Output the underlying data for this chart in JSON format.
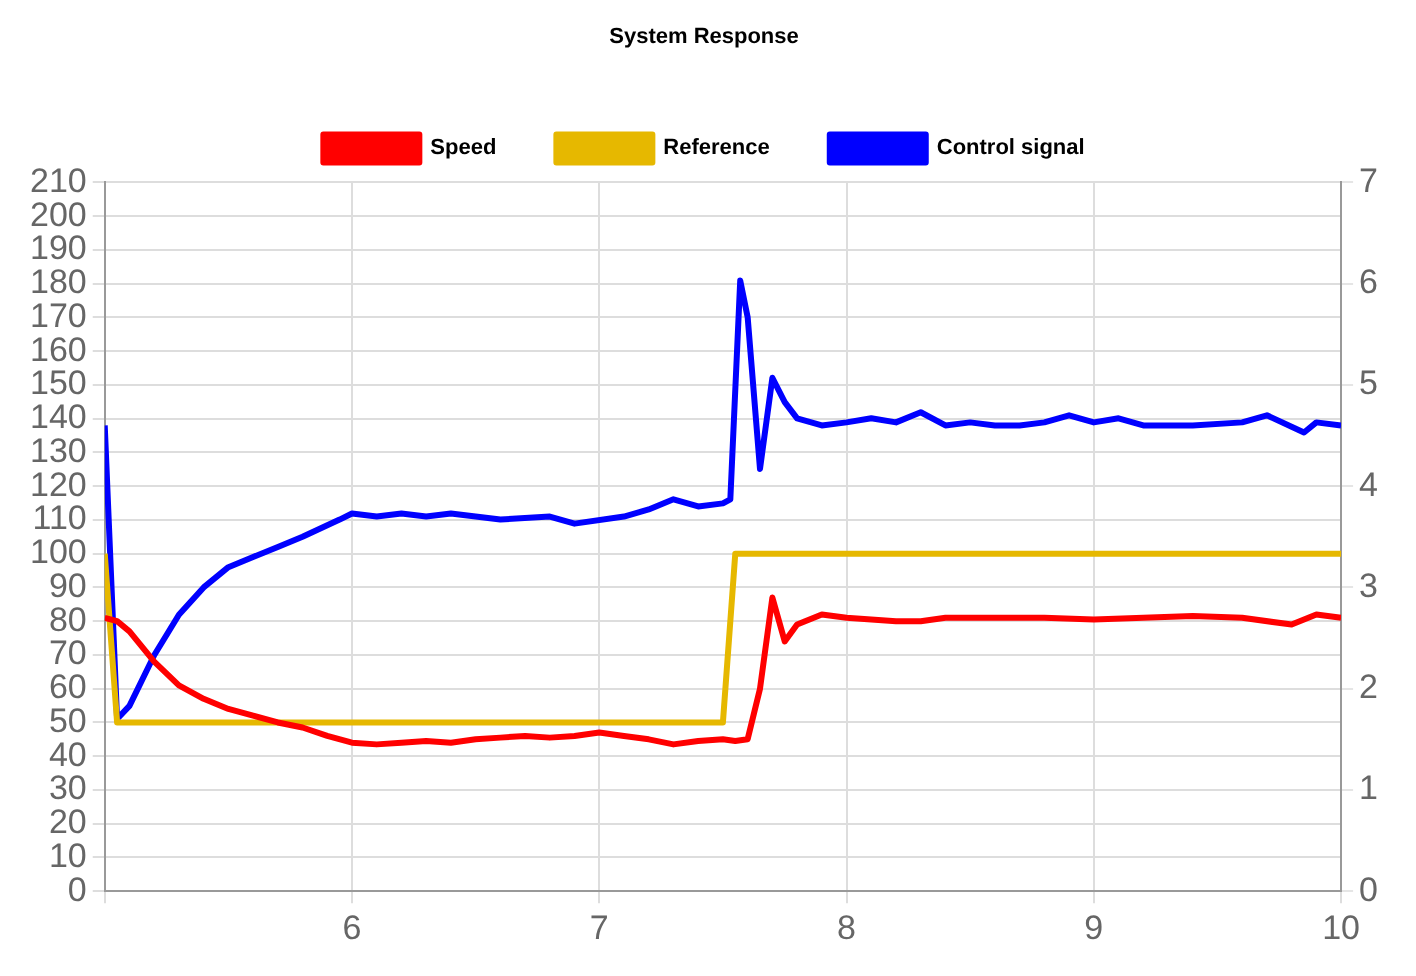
{
  "chart_data": {
    "type": "line",
    "title": "System Response",
    "legend": "top",
    "grid": true,
    "marker": "none",
    "line_style": "solid",
    "xlim": [
      5,
      10
    ],
    "xticks": [
      {
        "value": 5,
        "label": null
      },
      6,
      7,
      8,
      9,
      10
    ],
    "ylim": [
      0,
      210
    ],
    "yticks": [
      0,
      10,
      20,
      30,
      40,
      50,
      60,
      70,
      80,
      90,
      100,
      110,
      120,
      130,
      140,
      150,
      160,
      170,
      180,
      190,
      200,
      210
    ],
    "y2lim": [
      0,
      7
    ],
    "y2ticks": [
      0,
      1,
      2,
      3,
      4,
      5,
      6,
      7
    ],
    "series": [
      {
        "name": "Speed",
        "color": "#ff0000",
        "x": [
          5,
          5.05,
          5.1,
          5.2,
          5.3,
          5.4,
          5.5,
          5.6,
          5.7,
          5.8,
          5.9,
          6,
          6.1,
          6.2,
          6.3,
          6.4,
          6.5,
          6.6,
          6.7,
          6.8,
          6.9,
          7,
          7.1,
          7.2,
          7.3,
          7.4,
          7.5,
          7.55,
          7.6,
          7.65,
          7.7,
          7.75,
          7.8,
          7.9,
          8,
          8.2,
          8.3,
          8.4,
          8.6,
          8.8,
          9,
          9.2,
          9.4,
          9.6,
          9.8,
          9.9,
          10
        ],
        "values": [
          81,
          80,
          77,
          68,
          61,
          57,
          54,
          52,
          50,
          48.5,
          46,
          44,
          43.5,
          44,
          44.5,
          44,
          45,
          45.5,
          46,
          45.5,
          46,
          47,
          46,
          45,
          43.5,
          44.5,
          45,
          44.5,
          45,
          60,
          87,
          74,
          79,
          82,
          81,
          80,
          80,
          81,
          81,
          81,
          80.5,
          81,
          81.5,
          81,
          79,
          82,
          81
        ]
      },
      {
        "name": "Reference",
        "color": "#e6b800",
        "x": [
          5,
          5.05,
          7.5,
          7.55,
          10
        ],
        "values": [
          100,
          50,
          50,
          100,
          100
        ]
      },
      {
        "name": "Control signal",
        "color": "#0000ff",
        "axis": "y2",
        "x": [
          5,
          5.05,
          5.1,
          5.2,
          5.3,
          5.4,
          5.5,
          5.6,
          5.7,
          5.8,
          5.95,
          6,
          6.1,
          6.2,
          6.3,
          6.4,
          6.6,
          6.8,
          6.9,
          7.1,
          7.2,
          7.3,
          7.4,
          7.5,
          7.53,
          7.57,
          7.6,
          7.65,
          7.7,
          7.75,
          7.8,
          7.9,
          8,
          8.1,
          8.2,
          8.3,
          8.4,
          8.5,
          8.6,
          8.7,
          8.8,
          8.9,
          9,
          9.1,
          9.2,
          9.4,
          9.6,
          9.7,
          9.85,
          9.9,
          10
        ],
        "values": [
          4.6,
          1.7,
          1.83,
          2.33,
          2.73,
          3,
          3.2,
          3.3,
          3.4,
          3.5,
          3.67,
          3.73,
          3.7,
          3.73,
          3.7,
          3.73,
          3.67,
          3.7,
          3.63,
          3.7,
          3.77,
          3.87,
          3.8,
          3.83,
          3.87,
          6.03,
          5.67,
          4.17,
          5.07,
          4.83,
          4.67,
          4.6,
          4.63,
          4.67,
          4.63,
          4.73,
          4.6,
          4.63,
          4.6,
          4.6,
          4.63,
          4.7,
          4.63,
          4.67,
          4.6,
          4.6,
          4.63,
          4.7,
          4.53,
          4.63,
          4.6
        ]
      }
    ]
  }
}
